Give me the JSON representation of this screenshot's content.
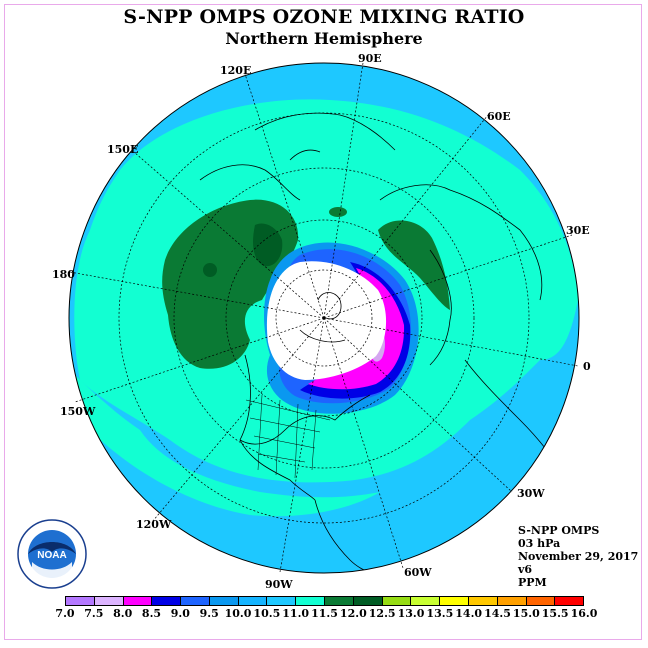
{
  "header": {
    "title": "S-NPP OMPS OZONE MIXING RATIO",
    "subtitle": "Northern Hemisphere"
  },
  "map": {
    "projection": "north-polar-stereographic",
    "longitude_labels": [
      "90E",
      "60E",
      "30E",
      "0",
      "30W",
      "60W",
      "90W",
      "120W",
      "150W",
      "180",
      "150E",
      "120E"
    ],
    "region_colors": {
      "ocean_band": "#1ec8ff",
      "teal": "#12ffd2",
      "dark_green": "#0a7a34",
      "darker_green": "#005c24",
      "blue_ring": "#0a98f0",
      "deep_blue": "#0000e6",
      "magenta": "#ff00ff",
      "lavender": "#d4a6f0",
      "pole_white": "#ffffff"
    }
  },
  "info": {
    "instrument": "S-NPP OMPS",
    "level": "03 hPa",
    "date": "November 29, 2017",
    "version": "v6",
    "units": "PPM"
  },
  "logo": {
    "text": "NOAA",
    "ring_text": "NATIONAL OCEANIC AND ATMOSPHERIC ADMINISTRATION · U.S. DEPARTMENT OF COMMERCE"
  },
  "colorbar": {
    "labels": [
      "7.0",
      "7.5",
      "8.0",
      "8.5",
      "9.0",
      "9.5",
      "10.0",
      "10.5",
      "11.0",
      "11.5",
      "12.0",
      "12.5",
      "13.0",
      "13.5",
      "14.0",
      "14.5",
      "15.0",
      "15.5",
      "16.0"
    ],
    "colors": [
      "#b478ff",
      "#dcb4ff",
      "#ff00ff",
      "#0000e6",
      "#1e64ff",
      "#0a98f0",
      "#14b4ff",
      "#1ec8ff",
      "#12ffd2",
      "#0a7a34",
      "#005c24",
      "#96dc14",
      "#c8ff32",
      "#ffff00",
      "#ffc800",
      "#ffa000",
      "#ff6400",
      "#ff0000",
      "#8c5a3c"
    ]
  }
}
